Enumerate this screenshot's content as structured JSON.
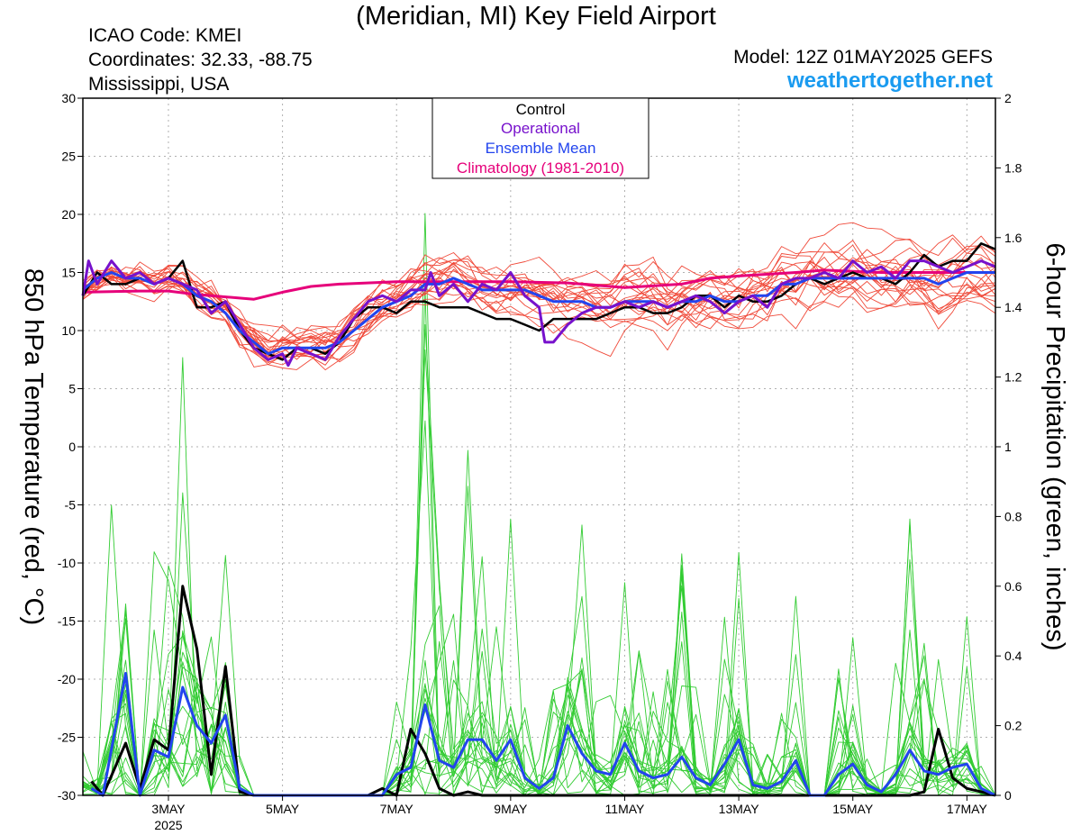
{
  "header": {
    "title": "(Meridian, MI) Key Field Airport",
    "icao": "ICAO Code: KMEI",
    "coordinates": "Coordinates: 32.33, -88.75",
    "region": "Mississippi, USA",
    "model": "Model: 12Z 01MAY2025 GEFS",
    "site": "weathertogether.net"
  },
  "colors": {
    "member_temp": "#f04a3a",
    "member_precip": "#33cc33",
    "control": "#000000",
    "operational": "#7711cc",
    "ensemble_mean": "#2244ee",
    "climatology": "#e6007a"
  },
  "chart_data": {
    "type": "line",
    "title": "(Meridian, MI) Key Field Airport",
    "ylabel": "850 hPa Temperature (red, °C)",
    "y2label": "6-hour Precipitation (green, inches)",
    "ylim": [
      -30,
      30
    ],
    "y2lim": [
      0,
      2
    ],
    "yticks": [
      -30,
      -25,
      -20,
      -15,
      -10,
      -5,
      0,
      5,
      10,
      15,
      20,
      25,
      30
    ],
    "y2ticks": [
      0,
      0.2,
      0.4,
      0.6,
      0.8,
      1,
      1.2,
      1.4,
      1.6,
      1.8,
      2
    ],
    "xlim": [
      1.5,
      17.5
    ],
    "xticks": [
      {
        "day": 3,
        "label": "3MAY",
        "sub": "2025"
      },
      {
        "day": 5,
        "label": "5MAY"
      },
      {
        "day": 7,
        "label": "7MAY"
      },
      {
        "day": 9,
        "label": "9MAY"
      },
      {
        "day": 11,
        "label": "11MAY"
      },
      {
        "day": 13,
        "label": "13MAY"
      },
      {
        "day": 15,
        "label": "15MAY"
      },
      {
        "day": 17,
        "label": "17MAY"
      }
    ],
    "grid": true,
    "legend_position": "top-center",
    "legend": [
      "Control",
      "Operational",
      "Ensemble Mean",
      "Climatology (1981-2010)"
    ],
    "temperature": {
      "control": [
        [
          1.5,
          13
        ],
        [
          1.75,
          15
        ],
        [
          2,
          14
        ],
        [
          2.25,
          14
        ],
        [
          2.5,
          14.5
        ],
        [
          2.75,
          14
        ],
        [
          3,
          14.5
        ],
        [
          3.25,
          16
        ],
        [
          3.5,
          12
        ],
        [
          3.75,
          12
        ],
        [
          4,
          12.5
        ],
        [
          4.25,
          10
        ],
        [
          4.5,
          8.5
        ],
        [
          4.75,
          8
        ],
        [
          5,
          7.5
        ],
        [
          5.25,
          8.5
        ],
        [
          5.5,
          8.5
        ],
        [
          5.75,
          8
        ],
        [
          6,
          9
        ],
        [
          6.25,
          11
        ],
        [
          6.5,
          12
        ],
        [
          6.75,
          12
        ],
        [
          7,
          11.5
        ],
        [
          7.25,
          12.5
        ],
        [
          7.5,
          12.5
        ],
        [
          7.75,
          12
        ],
        [
          8,
          12
        ],
        [
          8.25,
          12
        ],
        [
          8.5,
          11.5
        ],
        [
          8.75,
          11
        ],
        [
          9,
          11
        ],
        [
          9.25,
          10.5
        ],
        [
          9.5,
          10
        ],
        [
          9.75,
          11
        ],
        [
          10,
          11
        ],
        [
          10.25,
          11
        ],
        [
          10.5,
          11
        ],
        [
          10.75,
          11.5
        ],
        [
          11,
          12
        ],
        [
          11.25,
          12
        ],
        [
          11.5,
          11.5
        ],
        [
          11.75,
          11.5
        ],
        [
          12,
          12
        ],
        [
          12.25,
          13
        ],
        [
          12.5,
          13
        ],
        [
          12.75,
          12
        ],
        [
          13,
          13
        ],
        [
          13.25,
          12.5
        ],
        [
          13.5,
          12.5
        ],
        [
          13.75,
          13
        ],
        [
          14,
          14
        ],
        [
          14.25,
          14.5
        ],
        [
          14.5,
          14
        ],
        [
          14.75,
          14.5
        ],
        [
          15,
          15
        ],
        [
          15.25,
          14.5
        ],
        [
          15.5,
          14.5
        ],
        [
          15.75,
          14
        ],
        [
          16,
          15
        ],
        [
          16.25,
          16.5
        ],
        [
          16.5,
          15.5
        ],
        [
          16.75,
          16
        ],
        [
          17,
          16
        ],
        [
          17.25,
          17.5
        ],
        [
          17.5,
          17
        ]
      ],
      "operational": [
        [
          1.5,
          13
        ],
        [
          1.6,
          16
        ],
        [
          1.75,
          14
        ],
        [
          2,
          16
        ],
        [
          2.25,
          14.5
        ],
        [
          2.5,
          15
        ],
        [
          2.75,
          14
        ],
        [
          3,
          14.5
        ],
        [
          3.25,
          14
        ],
        [
          3.5,
          13.5
        ],
        [
          3.75,
          11.5
        ],
        [
          4,
          12.5
        ],
        [
          4.25,
          10.5
        ],
        [
          4.5,
          8.5
        ],
        [
          4.75,
          7.5
        ],
        [
          5,
          8
        ],
        [
          5.1,
          7
        ],
        [
          5.25,
          8.5
        ],
        [
          5.5,
          8
        ],
        [
          5.75,
          7.5
        ],
        [
          6,
          9.5
        ],
        [
          6.25,
          11
        ],
        [
          6.5,
          12.5
        ],
        [
          6.75,
          13
        ],
        [
          7,
          12.5
        ],
        [
          7.25,
          13.5
        ],
        [
          7.5,
          13.5
        ],
        [
          7.6,
          15
        ],
        [
          7.75,
          13
        ],
        [
          8,
          14
        ],
        [
          8.25,
          12.5
        ],
        [
          8.5,
          14
        ],
        [
          8.75,
          13.5
        ],
        [
          9,
          15
        ],
        [
          9.25,
          13
        ],
        [
          9.5,
          12
        ],
        [
          9.6,
          9
        ],
        [
          9.75,
          9
        ],
        [
          10,
          10.5
        ],
        [
          10.25,
          11.5
        ],
        [
          10.5,
          12
        ],
        [
          10.75,
          12
        ],
        [
          11,
          12.5
        ],
        [
          11.25,
          12
        ],
        [
          11.5,
          12.5
        ],
        [
          11.75,
          12
        ],
        [
          12,
          12.5
        ],
        [
          12.25,
          13
        ],
        [
          12.5,
          12.5
        ],
        [
          12.75,
          11.5
        ],
        [
          13,
          12.5
        ],
        [
          13.25,
          13
        ],
        [
          13.5,
          12
        ],
        [
          13.75,
          14
        ],
        [
          14,
          14.5
        ],
        [
          14.25,
          14.5
        ],
        [
          14.5,
          15
        ],
        [
          14.75,
          14.5
        ],
        [
          15,
          16
        ],
        [
          15.25,
          15
        ],
        [
          15.5,
          15.5
        ],
        [
          15.75,
          14.5
        ],
        [
          16,
          16
        ],
        [
          16.25,
          16
        ],
        [
          16.5,
          15.5
        ],
        [
          16.75,
          15
        ],
        [
          17,
          15.5
        ],
        [
          17.25,
          16
        ],
        [
          17.5,
          15.5
        ]
      ],
      "ensemble_mean": [
        [
          1.5,
          13.5
        ],
        [
          1.75,
          14.5
        ],
        [
          2,
          15
        ],
        [
          2.25,
          14.5
        ],
        [
          2.5,
          14.5
        ],
        [
          2.75,
          14
        ],
        [
          3,
          14.5
        ],
        [
          3.25,
          14
        ],
        [
          3.5,
          13
        ],
        [
          3.75,
          12.5
        ],
        [
          4,
          11.5
        ],
        [
          4.25,
          10
        ],
        [
          4.5,
          9
        ],
        [
          4.75,
          8
        ],
        [
          5,
          8.5
        ],
        [
          5.25,
          8.5
        ],
        [
          5.5,
          8.5
        ],
        [
          5.75,
          8.5
        ],
        [
          6,
          9
        ],
        [
          6.25,
          10
        ],
        [
          6.5,
          11
        ],
        [
          6.75,
          12
        ],
        [
          7,
          12.5
        ],
        [
          7.25,
          13
        ],
        [
          7.5,
          14
        ],
        [
          7.75,
          14
        ],
        [
          8,
          14.5
        ],
        [
          8.25,
          14
        ],
        [
          8.5,
          13.5
        ],
        [
          8.75,
          13.5
        ],
        [
          9,
          13.5
        ],
        [
          9.25,
          13.5
        ],
        [
          9.5,
          13
        ],
        [
          9.75,
          12.5
        ],
        [
          10,
          12.5
        ],
        [
          10.25,
          12.5
        ],
        [
          10.5,
          12
        ],
        [
          10.75,
          12
        ],
        [
          11,
          12.5
        ],
        [
          11.25,
          12.5
        ],
        [
          11.5,
          12.5
        ],
        [
          11.75,
          12
        ],
        [
          12,
          12.5
        ],
        [
          12.25,
          12.5
        ],
        [
          12.5,
          13
        ],
        [
          12.75,
          12.5
        ],
        [
          13,
          12.5
        ],
        [
          13.25,
          13
        ],
        [
          13.5,
          13
        ],
        [
          13.75,
          14
        ],
        [
          14,
          14
        ],
        [
          14.25,
          14.5
        ],
        [
          14.5,
          14.5
        ],
        [
          14.75,
          14.5
        ],
        [
          15,
          14.5
        ],
        [
          15.25,
          14.5
        ],
        [
          15.5,
          14.5
        ],
        [
          15.75,
          14.5
        ],
        [
          16,
          14.5
        ],
        [
          16.25,
          14.5
        ],
        [
          16.5,
          14
        ],
        [
          16.75,
          14.5
        ],
        [
          17,
          15
        ],
        [
          17.25,
          15
        ],
        [
          17.5,
          15
        ]
      ],
      "climatology": [
        [
          1.5,
          13.3
        ],
        [
          2.5,
          13.4
        ],
        [
          3,
          13.4
        ],
        [
          3.5,
          13.1
        ],
        [
          4,
          12.9
        ],
        [
          4.5,
          12.7
        ],
        [
          5,
          13.3
        ],
        [
          5.5,
          13.8
        ],
        [
          6,
          14
        ],
        [
          7,
          14.2
        ],
        [
          8,
          14.2
        ],
        [
          9,
          14.2
        ],
        [
          10,
          14.1
        ],
        [
          11,
          13.7
        ],
        [
          12,
          14
        ],
        [
          12.5,
          14.5
        ],
        [
          13,
          14.7
        ],
        [
          14,
          15
        ],
        [
          14.5,
          15.2
        ],
        [
          15,
          15.1
        ],
        [
          15.5,
          15
        ],
        [
          16,
          15
        ],
        [
          16.5,
          15
        ],
        [
          17,
          15
        ],
        [
          17.5,
          15
        ]
      ]
    },
    "precipitation": {
      "control": [
        [
          1.65,
          0.04
        ],
        [
          1.85,
          0
        ],
        [
          2.25,
          0.15
        ],
        [
          2.5,
          0.02
        ],
        [
          2.75,
          0.16
        ],
        [
          3,
          0.13
        ],
        [
          3.25,
          0.6
        ],
        [
          3.5,
          0.42
        ],
        [
          3.75,
          0.06
        ],
        [
          4,
          0.37
        ],
        [
          4.25,
          0.01
        ],
        [
          4.5,
          0
        ],
        [
          5,
          0
        ],
        [
          6,
          0
        ],
        [
          6.5,
          0
        ],
        [
          6.75,
          0.02
        ],
        [
          7,
          0
        ],
        [
          7.25,
          0.19
        ],
        [
          7.5,
          0.12
        ],
        [
          7.75,
          0.02
        ],
        [
          8,
          0
        ],
        [
          8.25,
          0.01
        ],
        [
          8.5,
          0
        ],
        [
          10,
          0
        ],
        [
          12,
          0
        ],
        [
          14,
          0
        ],
        [
          16,
          0
        ],
        [
          16.25,
          0.01
        ],
        [
          16.5,
          0.19
        ],
        [
          16.75,
          0.05
        ],
        [
          17,
          0.02
        ],
        [
          17.25,
          0.01
        ],
        [
          17.5,
          0
        ]
      ],
      "ensemble_mean": [
        [
          1.65,
          0.02
        ],
        [
          1.85,
          0
        ],
        [
          2.25,
          0.35
        ],
        [
          2.5,
          0
        ],
        [
          2.75,
          0.13
        ],
        [
          3,
          0.11
        ],
        [
          3.25,
          0.31
        ],
        [
          3.5,
          0.2
        ],
        [
          3.75,
          0.15
        ],
        [
          4,
          0.23
        ],
        [
          4.25,
          0.02
        ],
        [
          4.5,
          0
        ],
        [
          5,
          0
        ],
        [
          6,
          0
        ],
        [
          6.75,
          0
        ],
        [
          7,
          0.06
        ],
        [
          7.25,
          0.08
        ],
        [
          7.5,
          0.26
        ],
        [
          7.75,
          0.1
        ],
        [
          8,
          0.08
        ],
        [
          8.25,
          0.16
        ],
        [
          8.5,
          0.16
        ],
        [
          8.75,
          0.1
        ],
        [
          9,
          0.16
        ],
        [
          9.25,
          0.05
        ],
        [
          9.5,
          0.02
        ],
        [
          9.75,
          0.05
        ],
        [
          10,
          0.2
        ],
        [
          10.25,
          0.12
        ],
        [
          10.5,
          0.07
        ],
        [
          10.75,
          0.06
        ],
        [
          11,
          0.15
        ],
        [
          11.25,
          0.07
        ],
        [
          11.5,
          0.05
        ],
        [
          11.75,
          0.06
        ],
        [
          12,
          0.11
        ],
        [
          12.25,
          0.05
        ],
        [
          12.5,
          0.03
        ],
        [
          12.75,
          0.09
        ],
        [
          13,
          0.16
        ],
        [
          13.25,
          0.03
        ],
        [
          13.5,
          0.02
        ],
        [
          13.75,
          0.04
        ],
        [
          14,
          0.1
        ],
        [
          14.25,
          0
        ],
        [
          14.5,
          0
        ],
        [
          14.75,
          0.06
        ],
        [
          15,
          0.09
        ],
        [
          15.25,
          0.03
        ],
        [
          15.5,
          0.01
        ],
        [
          15.75,
          0.06
        ],
        [
          16,
          0.13
        ],
        [
          16.25,
          0.07
        ],
        [
          16.5,
          0.06
        ],
        [
          16.75,
          0.08
        ],
        [
          17,
          0.09
        ],
        [
          17.25,
          0.02
        ],
        [
          17.5,
          0
        ]
      ]
    }
  }
}
